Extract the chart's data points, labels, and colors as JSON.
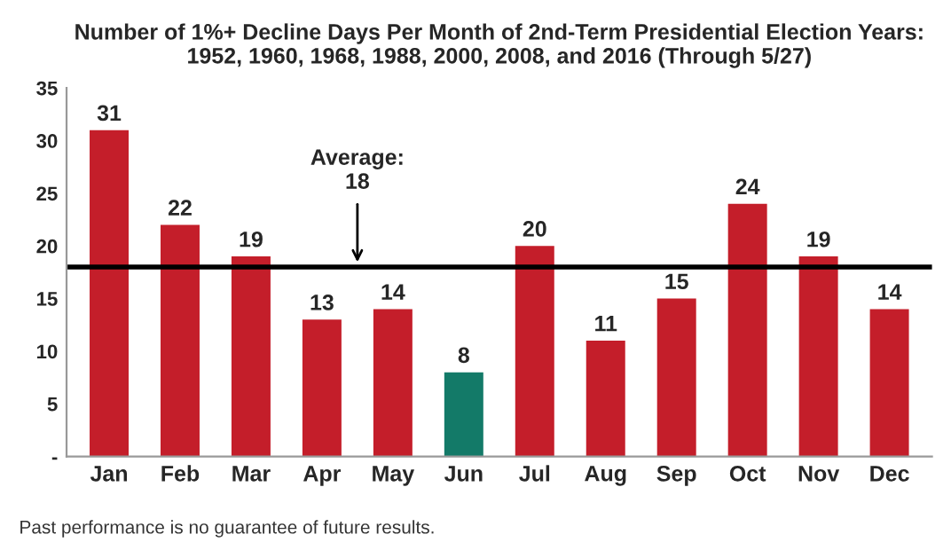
{
  "chart_data": {
    "type": "bar",
    "title": "Number of 1%+ Decline Days Per Month of 2nd-Term Presidential Election Years:\n1952, 1960, 1968, 1988, 2000, 2008, and 2016 (Through 5/27)",
    "categories": [
      "Jan",
      "Feb",
      "Mar",
      "Apr",
      "May",
      "Jun",
      "Jul",
      "Aug",
      "Sep",
      "Oct",
      "Nov",
      "Dec"
    ],
    "values": [
      31,
      22,
      19,
      13,
      14,
      8,
      20,
      11,
      15,
      24,
      19,
      14
    ],
    "colors": [
      "#c41e2a",
      "#c41e2a",
      "#c41e2a",
      "#c41e2a",
      "#c41e2a",
      "#137a68",
      "#c41e2a",
      "#c41e2a",
      "#c41e2a",
      "#c41e2a",
      "#c41e2a",
      "#c41e2a"
    ],
    "ylim": [
      0,
      35
    ],
    "yticks": [
      {
        "value": 0,
        "label": "-"
      },
      5,
      10,
      15,
      20,
      25,
      30,
      35
    ],
    "ref_lines": [
      {
        "axis": "y",
        "value": 18,
        "label": "Average:\n18",
        "color": "#000000",
        "line_style": "solid"
      }
    ],
    "annotations": [
      "Past performance is no guarantee of future results."
    ],
    "data_labels": true,
    "grid": false
  }
}
